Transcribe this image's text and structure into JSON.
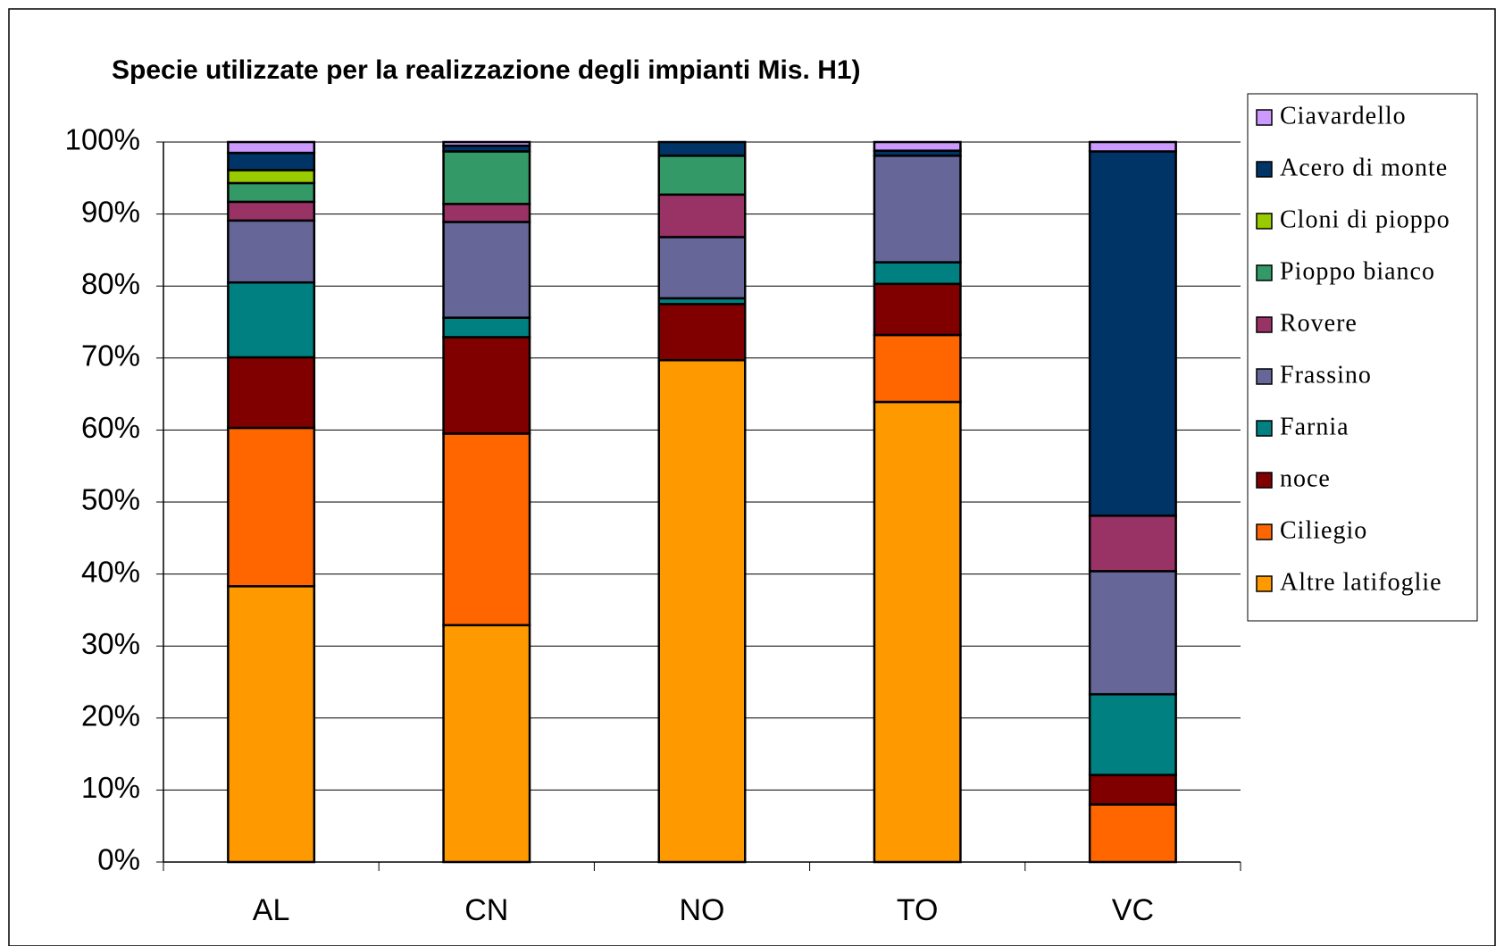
{
  "chart_data": {
    "type": "bar",
    "stacked": true,
    "title": "Specie utilizzate per la realizzazione degli impianti Mis. H1)",
    "categories": [
      "AL",
      "CN",
      "NO",
      "TO",
      "VC"
    ],
    "series": [
      {
        "name": "Altre latifoglie",
        "color": "#FF9900",
        "values": [
          38.3,
          32.9,
          69.7,
          63.9,
          0
        ]
      },
      {
        "name": "Ciliegio",
        "color": "#FF6600",
        "values": [
          22.0,
          26.6,
          0,
          9.3,
          8.0
        ]
      },
      {
        "name": "noce",
        "color": "#800000",
        "values": [
          9.8,
          13.4,
          7.8,
          7.1,
          4.1
        ]
      },
      {
        "name": "Farnia",
        "color": "#008080",
        "values": [
          10.4,
          2.7,
          0.8,
          3.0,
          11.2
        ]
      },
      {
        "name": "Frassino",
        "color": "#666699",
        "values": [
          8.6,
          13.3,
          8.5,
          14.8,
          17.1
        ]
      },
      {
        "name": "Rovere",
        "color": "#993366",
        "values": [
          2.6,
          2.5,
          5.9,
          0,
          7.7
        ]
      },
      {
        "name": "Pioppo bianco",
        "color": "#339966",
        "values": [
          2.6,
          7.3,
          5.4,
          0,
          0
        ]
      },
      {
        "name": "Cloni di pioppo",
        "color": "#99CC00",
        "values": [
          1.8,
          0,
          0,
          0,
          0
        ]
      },
      {
        "name": "Acero di monte",
        "color": "#003366",
        "values": [
          2.4,
          0.8,
          1.9,
          0.7,
          50.6
        ]
      },
      {
        "name": "Ciavardello",
        "color": "#CC99FF",
        "values": [
          1.5,
          0.5,
          0,
          1.2,
          1.3
        ]
      }
    ],
    "ylim": [
      0,
      100
    ],
    "yticks": [
      {
        "value": 0,
        "label": "0%"
      },
      {
        "value": 10,
        "label": "10%"
      },
      {
        "value": 20,
        "label": "20%"
      },
      {
        "value": 30,
        "label": "30%"
      },
      {
        "value": 40,
        "label": "40%"
      },
      {
        "value": 50,
        "label": "50%"
      },
      {
        "value": 60,
        "label": "60%"
      },
      {
        "value": 70,
        "label": "70%"
      },
      {
        "value": 80,
        "label": "80%"
      },
      {
        "value": 90,
        "label": "90%"
      },
      {
        "value": 100,
        "label": "100%"
      }
    ],
    "grid": true,
    "legend": "right"
  }
}
